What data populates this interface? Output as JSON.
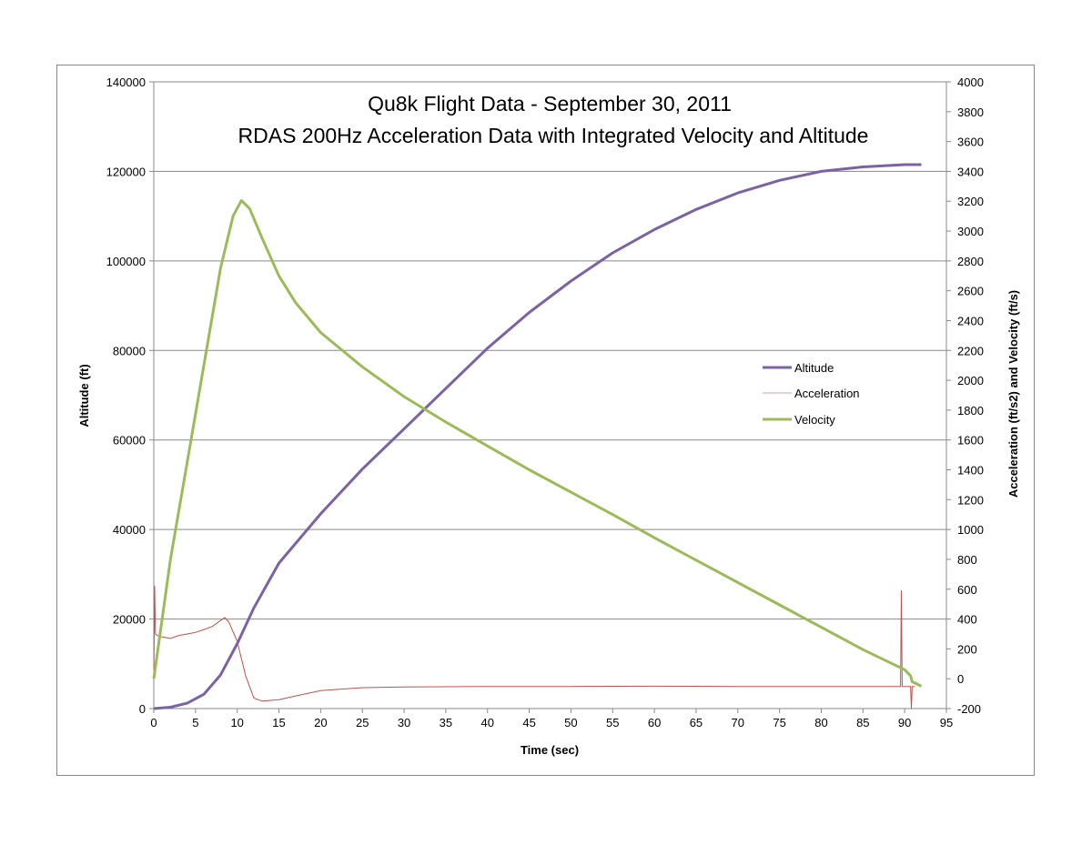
{
  "chart_data": {
    "type": "line",
    "title": "Qu8k Flight Data - September 30, 2011",
    "subtitle": "RDAS 200Hz Acceleration Data with Integrated Velocity and Altitude",
    "xlabel": "Time (sec)",
    "ylabel_left": "Altitude (ft)",
    "ylabel_right": "Acceleration (ft/s2) and Velocity (ft/s)",
    "xlim": [
      0,
      95
    ],
    "ylim_left": [
      0,
      140000
    ],
    "ylim_right": [
      -200,
      4000
    ],
    "x_ticks": [
      0,
      5,
      10,
      15,
      20,
      25,
      30,
      35,
      40,
      45,
      50,
      55,
      60,
      65,
      70,
      75,
      80,
      85,
      90,
      95
    ],
    "y_ticks_left": [
      0,
      20000,
      40000,
      60000,
      80000,
      100000,
      120000,
      140000
    ],
    "y_ticks_right": [
      -200,
      0,
      200,
      400,
      600,
      800,
      1000,
      1200,
      1400,
      1600,
      1800,
      2000,
      2200,
      2400,
      2600,
      2800,
      3000,
      3200,
      3400,
      3600,
      3800,
      4000
    ],
    "grid": "horizontal major (left axis)",
    "legend_position": "center-right",
    "colors": {
      "altitude": "#7b62a6",
      "acceleration": "#c0504d",
      "velocity": "#9bbb59"
    },
    "series": [
      {
        "name": "Altitude",
        "axis": "left",
        "x": [
          0,
          2,
          4,
          6,
          8,
          10,
          12,
          15,
          20,
          25,
          30,
          35,
          40,
          45,
          50,
          55,
          60,
          65,
          70,
          75,
          80,
          85,
          90,
          92
        ],
        "y": [
          0,
          300,
          1200,
          3200,
          7500,
          14500,
          22500,
          32500,
          43500,
          53500,
          62500,
          71500,
          80500,
          88500,
          95500,
          101800,
          107000,
          111500,
          115200,
          118000,
          120000,
          121000,
          121500,
          121500
        ]
      },
      {
        "name": "Acceleration",
        "axis": "right",
        "x": [
          0,
          0.1,
          0.2,
          0.4,
          1,
          2,
          3,
          4,
          5,
          6,
          7,
          8,
          8.5,
          9,
          10,
          11,
          12,
          13,
          14,
          15,
          17,
          20,
          25,
          30,
          40,
          50,
          60,
          70,
          80,
          89.5,
          89.6,
          89.7,
          90.7,
          90.8,
          90.9,
          91.2
        ],
        "y": [
          0,
          620,
          300,
          290,
          280,
          270,
          290,
          300,
          310,
          330,
          350,
          390,
          410,
          380,
          250,
          20,
          -130,
          -150,
          -145,
          -140,
          -115,
          -80,
          -60,
          -55,
          -52,
          -52,
          -50,
          -52,
          -52,
          -52,
          590,
          -52,
          -52,
          -200,
          -52,
          -52
        ]
      },
      {
        "name": "Velocity",
        "axis": "right",
        "x": [
          0,
          2,
          4,
          6,
          8,
          9.5,
          10.5,
          11.5,
          13,
          15,
          17,
          20,
          25,
          30,
          35,
          40,
          45,
          50,
          55,
          60,
          65,
          70,
          75,
          80,
          85,
          90,
          90.7,
          90.9,
          92
        ],
        "y": [
          0,
          800,
          1450,
          2100,
          2750,
          3100,
          3205,
          3150,
          2950,
          2700,
          2520,
          2320,
          2090,
          1890,
          1720,
          1560,
          1400,
          1250,
          1100,
          945,
          795,
          645,
          495,
          345,
          195,
          60,
          20,
          -20,
          -50
        ]
      }
    ]
  }
}
